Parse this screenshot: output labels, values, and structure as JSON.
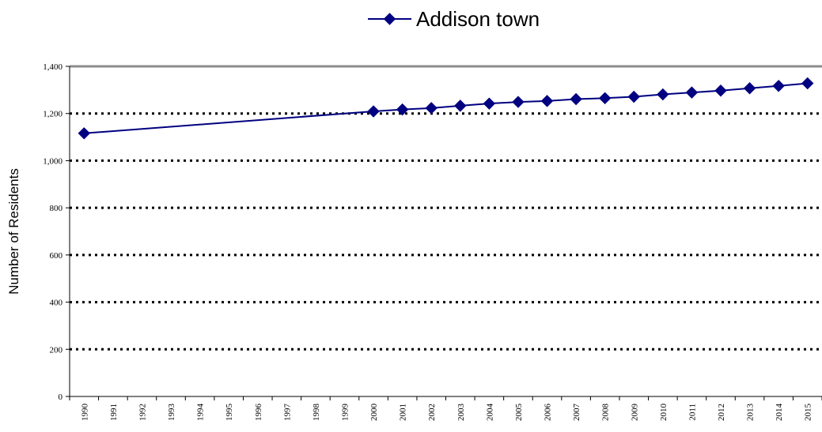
{
  "chart_data": {
    "type": "line",
    "title": "",
    "xlabel": "",
    "ylabel": "Number of Residents",
    "ylim": [
      0,
      1400
    ],
    "yticks": [
      0,
      200,
      400,
      600,
      800,
      1000,
      1200,
      1400
    ],
    "ytick_labels": [
      "0",
      "200",
      "400",
      "600",
      "800",
      "1,000",
      "1,200",
      "1,400"
    ],
    "grid": true,
    "legend_position": "top-center",
    "categories": [
      "1990",
      "1991",
      "1992",
      "1993",
      "1994",
      "1995",
      "1996",
      "1997",
      "1998",
      "1999",
      "2000",
      "2001",
      "2002",
      "2003",
      "2004",
      "2005",
      "2006",
      "2007",
      "2008",
      "2009",
      "2010",
      "2011",
      "2012",
      "2013",
      "2014",
      "2015"
    ],
    "series": [
      {
        "name": "Addison town",
        "color": "#000080",
        "marker": "diamond",
        "values": [
          1116,
          null,
          null,
          null,
          null,
          null,
          null,
          null,
          null,
          null,
          1209,
          1217,
          1223,
          1233,
          1242,
          1249,
          1253,
          1261,
          1265,
          1271,
          1281,
          1289,
          1297,
          1307,
          1317,
          1328
        ]
      }
    ]
  }
}
